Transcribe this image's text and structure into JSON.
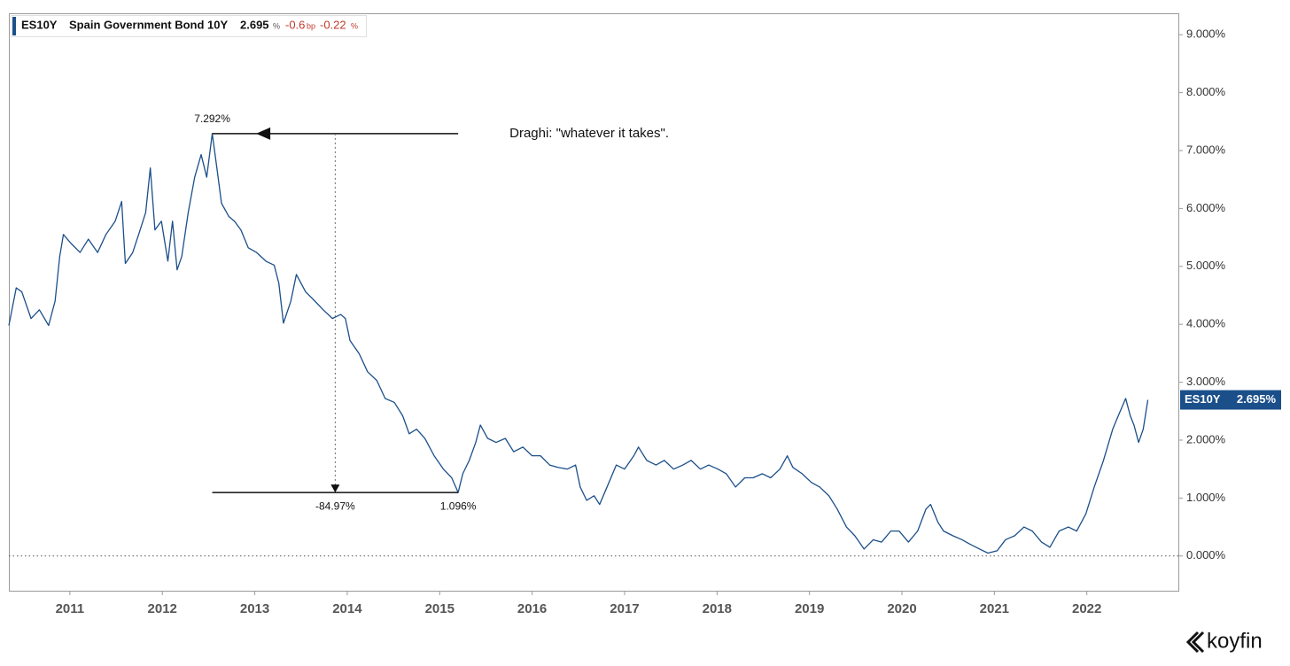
{
  "chart_data": {
    "type": "line",
    "header": {
      "name": "Spain Government Bond 10Y",
      "price": "2.695",
      "price_unit": "%",
      "change": "-0.6",
      "change_unit": "bp",
      "change_pct": "-0.22",
      "change_pct_unit": "%"
    },
    "badge_label": "2.695%",
    "brand": "koyfin",
    "annotations": {
      "peak": "7.292%",
      "note": "Draghi: \"whatever it takes\".",
      "change": "-84.97%",
      "trough": "1.096%"
    },
    "x": [
      2010.34,
      2010.42,
      2010.48,
      2010.58,
      2010.67,
      2010.77,
      2010.84,
      2010.89,
      2010.93,
      2011.01,
      2011.11,
      2011.2,
      2011.3,
      2011.39,
      2011.49,
      2011.56,
      2011.6,
      2011.68,
      2011.76,
      2011.82,
      2011.87,
      2011.92,
      2011.99,
      2012.06,
      2012.11,
      2012.16,
      2012.21,
      2012.28,
      2012.35,
      2012.42,
      2012.48,
      2012.54,
      2012.59,
      2012.64,
      2012.72,
      2012.78,
      2012.85,
      2012.93,
      2013.02,
      2013.12,
      2013.21,
      2013.26,
      2013.31,
      2013.39,
      2013.45,
      2013.55,
      2013.65,
      2013.74,
      2013.84,
      2013.93,
      2013.98,
      2014.03,
      2014.13,
      2014.22,
      2014.32,
      2014.41,
      2014.51,
      2014.6,
      2014.67,
      2014.75,
      2014.84,
      2014.94,
      2015.04,
      2015.13,
      2015.2,
      2015.25,
      2015.32,
      2015.39,
      2015.44,
      2015.52,
      2015.61,
      2015.71,
      2015.8,
      2015.9,
      2016.0,
      2016.09,
      2016.19,
      2016.28,
      2016.38,
      2016.47,
      2016.52,
      2016.59,
      2016.67,
      2016.73,
      2016.81,
      2016.91,
      2017.0,
      2017.1,
      2017.15,
      2017.24,
      2017.34,
      2017.43,
      2017.53,
      2017.63,
      2017.72,
      2017.82,
      2017.91,
      2018.01,
      2018.1,
      2018.2,
      2018.3,
      2018.39,
      2018.49,
      2018.58,
      2018.68,
      2018.76,
      2018.82,
      2018.92,
      2019.02,
      2019.11,
      2019.21,
      2019.3,
      2019.4,
      2019.49,
      2019.59,
      2019.69,
      2019.78,
      2019.88,
      2019.97,
      2020.07,
      2020.17,
      2020.26,
      2020.31,
      2020.39,
      2020.45,
      2020.55,
      2020.65,
      2020.74,
      2020.84,
      2020.93,
      2021.03,
      2021.12,
      2021.22,
      2021.32,
      2021.41,
      2021.51,
      2021.6,
      2021.7,
      2021.8,
      2021.89,
      2021.99,
      2022.08,
      2022.18,
      2022.28,
      2022.34,
      2022.42,
      2022.47,
      2022.51,
      2022.56,
      2022.61,
      2022.66
    ],
    "series": [
      {
        "name": "ES10Y",
        "color": "#1b4f8a",
        "values": [
          3.98,
          4.63,
          4.56,
          4.1,
          4.25,
          3.98,
          4.4,
          5.17,
          5.55,
          5.4,
          5.24,
          5.47,
          5.24,
          5.55,
          5.78,
          6.12,
          5.05,
          5.24,
          5.63,
          5.93,
          6.7,
          5.63,
          5.78,
          5.09,
          5.78,
          4.94,
          5.17,
          5.93,
          6.54,
          6.93,
          6.54,
          7.292,
          6.7,
          6.09,
          5.86,
          5.78,
          5.63,
          5.32,
          5.24,
          5.09,
          5.02,
          4.71,
          4.02,
          4.4,
          4.86,
          4.56,
          4.4,
          4.25,
          4.1,
          4.17,
          4.1,
          3.72,
          3.49,
          3.18,
          3.03,
          2.72,
          2.65,
          2.42,
          2.11,
          2.19,
          2.03,
          1.73,
          1.5,
          1.35,
          1.096,
          1.42,
          1.65,
          1.96,
          2.26,
          2.03,
          1.96,
          2.03,
          1.8,
          1.88,
          1.73,
          1.73,
          1.57,
          1.53,
          1.5,
          1.57,
          1.19,
          0.96,
          1.04,
          0.89,
          1.19,
          1.57,
          1.5,
          1.73,
          1.88,
          1.65,
          1.57,
          1.65,
          1.5,
          1.57,
          1.65,
          1.5,
          1.57,
          1.5,
          1.42,
          1.19,
          1.35,
          1.35,
          1.42,
          1.35,
          1.5,
          1.73,
          1.53,
          1.42,
          1.27,
          1.19,
          1.04,
          0.81,
          0.5,
          0.35,
          0.12,
          0.28,
          0.24,
          0.43,
          0.43,
          0.24,
          0.43,
          0.81,
          0.89,
          0.58,
          0.43,
          0.35,
          0.28,
          0.2,
          0.12,
          0.05,
          0.09,
          0.28,
          0.35,
          0.5,
          0.43,
          0.24,
          0.15,
          0.43,
          0.5,
          0.43,
          0.73,
          1.19,
          1.65,
          2.19,
          2.42,
          2.72,
          2.42,
          2.26,
          1.96,
          2.19,
          2.695
        ]
      }
    ],
    "xlim": [
      2010.34,
      2022.99
    ],
    "xticks": [
      2011,
      2012,
      2013,
      2014,
      2015,
      2016,
      2017,
      2018,
      2019,
      2020,
      2021,
      2022
    ],
    "ylim": [
      -0.6,
      9.37
    ],
    "yticks": [
      {
        "value": 0,
        "label": "0.000%"
      },
      {
        "value": 1,
        "label": "1.000%"
      },
      {
        "value": 2,
        "label": "2.000%"
      },
      {
        "value": 3,
        "label": "3.000%"
      },
      {
        "value": 4,
        "label": "4.000%"
      },
      {
        "value": 5,
        "label": "5.000%"
      },
      {
        "value": 6,
        "label": "6.000%"
      },
      {
        "value": 7,
        "label": "7.000%"
      },
      {
        "value": 8,
        "label": "8.000%"
      },
      {
        "value": 9,
        "label": "9.000%"
      }
    ],
    "zero_line": true
  }
}
